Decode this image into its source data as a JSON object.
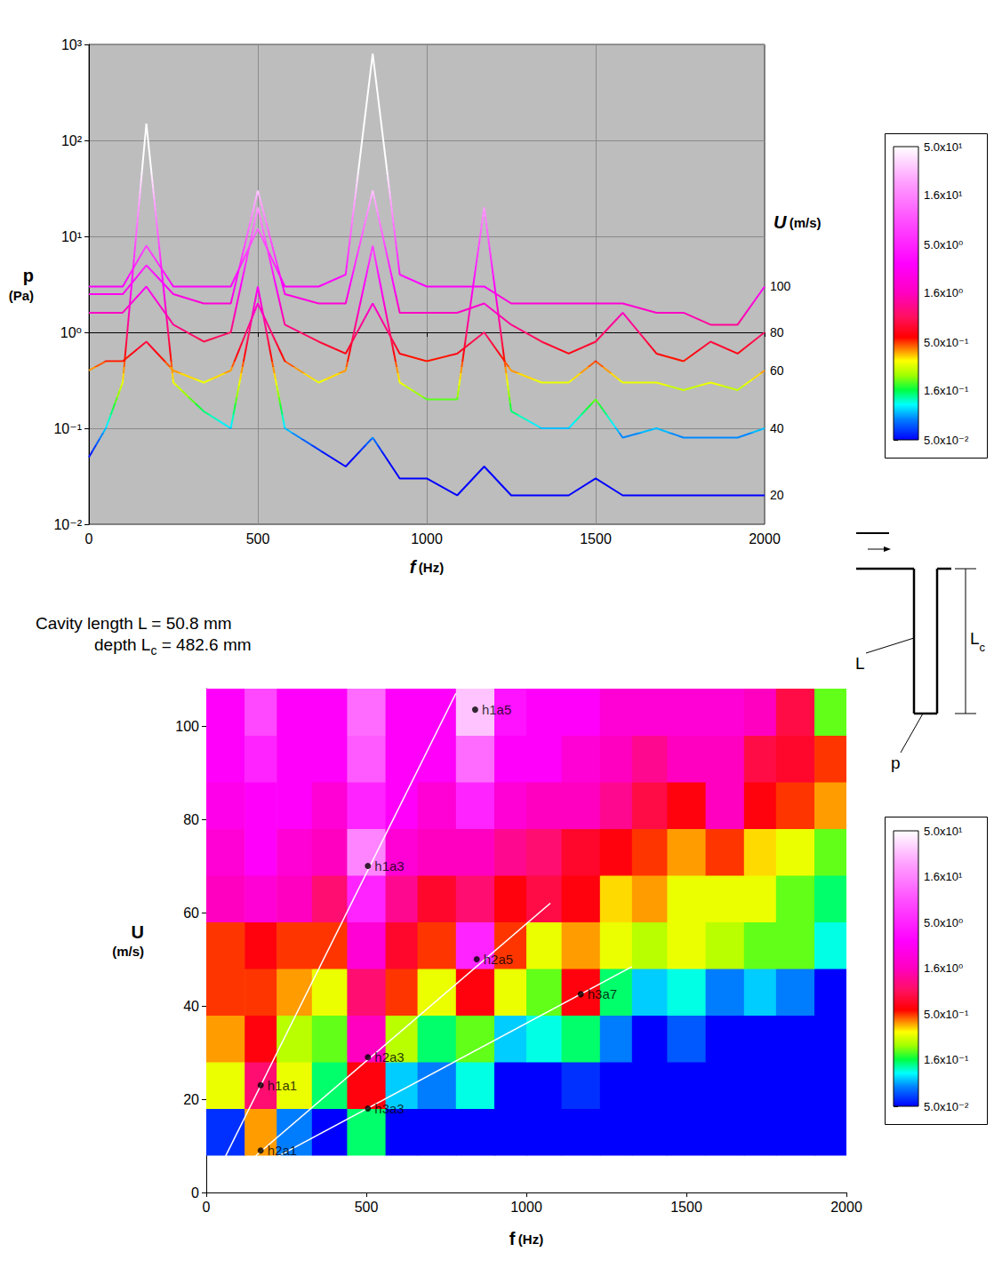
{
  "chart_data": [
    {
      "type": "line",
      "xlabel": "f (Hz)",
      "ylabel": "p (Pa)",
      "zlabel": "U (m/s)",
      "log": "y",
      "grid": true,
      "xlim": [
        0,
        2000
      ],
      "xticks": [
        0,
        500,
        1000,
        1500,
        2000
      ],
      "ylim": [
        0.01,
        1000
      ],
      "yticks": [
        {
          "value": 0.01,
          "label": "10⁻²"
        },
        {
          "value": 0.1,
          "label": "10⁻¹"
        },
        {
          "value": 1,
          "label": "10⁰"
        },
        {
          "value": 10,
          "label": "10¹"
        },
        {
          "value": 100,
          "label": "10²"
        },
        {
          "value": 1000,
          "label": "10³"
        }
      ],
      "x": [
        0,
        50,
        100,
        170,
        250,
        340,
        420,
        500,
        580,
        680,
        760,
        840,
        920,
        1000,
        1090,
        1170,
        1250,
        1340,
        1420,
        1500,
        1580,
        1680,
        1760,
        1840,
        1920,
        2000
      ],
      "series": [
        {
          "name": "20",
          "values": [
            0.05,
            0.1,
            0.3,
            150,
            0.3,
            0.15,
            0.1,
            3,
            0.1,
            0.06,
            0.04,
            0.08,
            0.03,
            0.03,
            0.02,
            0.04,
            0.02,
            0.02,
            0.02,
            0.03,
            0.02,
            0.02,
            0.02,
            0.02,
            0.02,
            0.02
          ]
        },
        {
          "name": "40",
          "values": [
            0.4,
            0.5,
            0.5,
            0.8,
            0.4,
            0.3,
            0.4,
            2,
            0.5,
            0.3,
            0.4,
            8,
            0.3,
            0.2,
            0.2,
            20,
            0.15,
            0.1,
            0.1,
            0.2,
            0.08,
            0.1,
            0.08,
            0.08,
            0.08,
            0.1
          ]
        },
        {
          "name": "60",
          "values": [
            1.6,
            1.6,
            1.6,
            3,
            1.2,
            0.8,
            1,
            20,
            1.2,
            0.8,
            0.6,
            2,
            0.6,
            0.5,
            0.6,
            1,
            0.4,
            0.3,
            0.3,
            0.5,
            0.3,
            0.3,
            0.25,
            0.3,
            0.25,
            0.4
          ]
        },
        {
          "name": "80",
          "values": [
            2.5,
            2.5,
            2.5,
            5,
            2.5,
            2,
            2,
            30,
            2.5,
            2,
            2,
            30,
            1.6,
            1.6,
            1.6,
            2,
            1.2,
            0.8,
            0.6,
            0.8,
            1.6,
            0.6,
            0.5,
            0.8,
            0.6,
            1
          ]
        },
        {
          "name": "100",
          "values": [
            3,
            3,
            3,
            8,
            3,
            3,
            3,
            12,
            3,
            3,
            4,
            800,
            4,
            3,
            3,
            3,
            2,
            2,
            2,
            2,
            2,
            1.6,
            1.6,
            1.2,
            1.2,
            3
          ]
        }
      ],
      "colorbar": {
        "range": [
          0.05,
          50
        ],
        "ticks": [
          {
            "value": 0.05,
            "label": "5.0x10⁻²"
          },
          {
            "value": 0.16,
            "label": "1.6x10⁻¹"
          },
          {
            "value": 0.5,
            "label": "5.0x10⁻¹"
          },
          {
            "value": 1.6,
            "label": "1.6x10⁰"
          },
          {
            "value": 5,
            "label": "5.0x10⁰"
          },
          {
            "value": 16,
            "label": "1.6x10¹"
          },
          {
            "value": 50,
            "label": "5.0x10¹"
          }
        ]
      }
    },
    {
      "type": "heatmap",
      "xlabel": "f (Hz)",
      "ylabel": "U (m/s)",
      "grid": false,
      "xlim": [
        0,
        2000
      ],
      "xticks": [
        0,
        500,
        1000,
        1500,
        2000
      ],
      "ylim": [
        0,
        108
      ],
      "yticks": [
        0,
        20,
        40,
        60,
        80,
        100
      ],
      "x_bins": [
        0,
        120,
        220,
        330,
        440,
        560,
        660,
        780,
        900,
        1000,
        1110,
        1230,
        1330,
        1440,
        1560,
        1680,
        1780,
        1900,
        2000
      ],
      "y_bins": [
        8,
        18,
        28,
        38,
        48,
        58,
        68,
        78,
        88,
        98,
        108
      ],
      "cells": [
        [
          0.06,
          0.4,
          0.08,
          0.04,
          0.15,
          0.03,
          0.03,
          0.05,
          0.03,
          0.03,
          0.03,
          0.03,
          0.03,
          0.03,
          0.03,
          0.03,
          0.03,
          0.03
        ],
        [
          0.3,
          1.0,
          0.3,
          0.15,
          0.6,
          0.1,
          0.08,
          0.12,
          0.04,
          0.03,
          0.06,
          0.03,
          0.03,
          0.05,
          0.03,
          0.03,
          0.03,
          0.03
        ],
        [
          0.4,
          0.6,
          0.25,
          0.2,
          1.6,
          0.25,
          0.15,
          0.2,
          0.1,
          0.12,
          0.15,
          0.08,
          0.05,
          0.07,
          0.04,
          0.03,
          0.03,
          0.03
        ],
        [
          0.5,
          0.5,
          0.4,
          0.3,
          1.0,
          0.5,
          0.3,
          0.6,
          0.3,
          0.2,
          0.6,
          0.15,
          0.1,
          0.12,
          0.08,
          0.1,
          0.08,
          0.05
        ],
        [
          0.5,
          0.6,
          0.5,
          0.5,
          2,
          0.7,
          0.5,
          5,
          0.5,
          0.3,
          0.4,
          0.3,
          0.25,
          0.3,
          0.25,
          0.2,
          0.2,
          0.12
        ],
        [
          1.6,
          2,
          1.6,
          1,
          5,
          1.2,
          0.7,
          1,
          0.6,
          0.8,
          0.6,
          0.35,
          0.4,
          0.3,
          0.3,
          0.3,
          0.2,
          0.15
        ],
        [
          2,
          3,
          2,
          1.6,
          16,
          2,
          1.6,
          1.6,
          1.2,
          1,
          0.7,
          0.6,
          0.5,
          0.4,
          0.5,
          0.35,
          0.3,
          0.2
        ],
        [
          2.5,
          3,
          3,
          2,
          5,
          3,
          2,
          5,
          2,
          1.6,
          1.6,
          1.2,
          0.8,
          0.6,
          1.6,
          0.6,
          0.5,
          0.4
        ],
        [
          3,
          5,
          3,
          3,
          10,
          3,
          3,
          12,
          3,
          3,
          2,
          1.6,
          1.2,
          1.6,
          1.6,
          0.8,
          0.7,
          0.5
        ],
        [
          3,
          8,
          3,
          3,
          12,
          3,
          3,
          30,
          4,
          3,
          3,
          2,
          2,
          2,
          2,
          1.6,
          0.8,
          0.2
        ]
      ],
      "colorbar": {
        "range": [
          0.05,
          50
        ],
        "ticks": [
          {
            "value": 0.05,
            "label": "5.0x10⁻²"
          },
          {
            "value": 0.16,
            "label": "1.6x10⁻¹"
          },
          {
            "value": 0.5,
            "label": "5.0x10⁻¹"
          },
          {
            "value": 1.6,
            "label": "1.6x10⁰"
          },
          {
            "value": 5,
            "label": "5.0x10⁰"
          },
          {
            "value": 16,
            "label": "1.6x10¹"
          },
          {
            "value": 50,
            "label": "5.0x10¹"
          }
        ]
      },
      "lines": [
        [
          [
            40,
            5
          ],
          [
            780,
            107
          ]
        ],
        [
          [
            140,
            7
          ],
          [
            1075,
            62
          ]
        ],
        [
          [
            190,
            6.5
          ],
          [
            1330,
            48.4
          ]
        ]
      ],
      "annotations": [
        {
          "text": "h1a5",
          "x": 840,
          "y": 103.5
        },
        {
          "text": "h1a3",
          "x": 505,
          "y": 70
        },
        {
          "text": "h2a5",
          "x": 845,
          "y": 50
        },
        {
          "text": "h3a7",
          "x": 1170,
          "y": 42.5
        },
        {
          "text": "h2a3",
          "x": 505,
          "y": 29
        },
        {
          "text": "h1a1",
          "x": 170,
          "y": 23
        },
        {
          "text": "h3a3",
          "x": 505,
          "y": 18
        },
        {
          "text": "h2a1",
          "x": 170,
          "y": 9
        }
      ]
    }
  ],
  "caption": [
    {
      "text": "Cavity length L = 50.8 mm"
    },
    {
      "text": "depth L",
      "sub": "c",
      "after": " = 482.6 mm"
    }
  ],
  "schematic": {
    "labels": [
      {
        "text": "L"
      },
      {
        "text": "L",
        "sub": "c"
      },
      {
        "text": "p"
      }
    ]
  }
}
